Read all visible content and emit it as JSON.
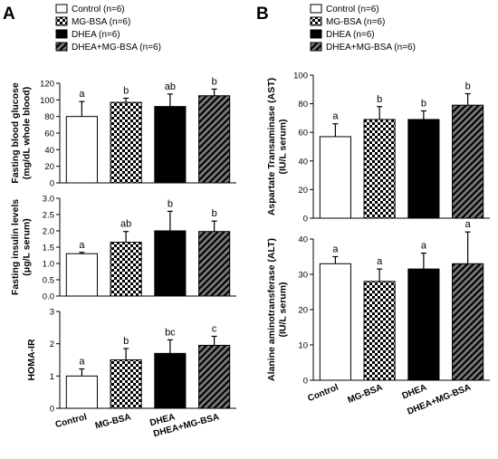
{
  "figure": {
    "panels": [
      {
        "letter": "A"
      },
      {
        "letter": "B"
      }
    ]
  },
  "legend": {
    "items": [
      {
        "label": "Control (n=6)",
        "pattern": "white"
      },
      {
        "label": "MG-BSA (n=6)",
        "pattern": "checker"
      },
      {
        "label": "DHEA (n=6)",
        "pattern": "black"
      },
      {
        "label": "DHEA+MG-BSA (n=6)",
        "pattern": "diag"
      }
    ]
  },
  "colors": {
    "bar_fill_black": "#000000",
    "diag_bg": "#7a7a7a",
    "axis": "#000000"
  },
  "chart_data": [
    {
      "type": "bar",
      "panel": "A",
      "ylabel": [
        "Fasting blood glucose",
        "(mg/dL whole blood)"
      ],
      "ylim": [
        0,
        120
      ],
      "yticks": [
        0,
        20,
        40,
        60,
        80,
        100,
        120
      ],
      "tick_labels": [
        "0",
        "20",
        "40",
        "60",
        "80",
        "100",
        "120"
      ],
      "categories": [
        "Control",
        "MG-BSA",
        "DHEA",
        "DHEA+MG-BSA"
      ],
      "values": [
        80,
        97,
        92,
        105
      ],
      "errors": [
        18,
        5,
        15,
        8
      ],
      "significance": [
        "a",
        "b",
        "ab",
        "b"
      ]
    },
    {
      "type": "bar",
      "panel": "A",
      "ylabel": [
        "Fasting insulin levels",
        "(μg/L serum)"
      ],
      "ylim": [
        0,
        3.0
      ],
      "yticks": [
        0,
        0.5,
        1.0,
        1.5,
        2.0,
        2.5,
        3.0
      ],
      "tick_labels": [
        "0.0",
        "0.5",
        "1.0",
        "1.5",
        "2.0",
        "2.5",
        "3.0"
      ],
      "categories": [
        "Control",
        "MG-BSA",
        "DHEA",
        "DHEA+MG-BSA"
      ],
      "values": [
        1.3,
        1.65,
        2.0,
        1.98
      ],
      "errors": [
        0.04,
        0.33,
        0.6,
        0.32
      ],
      "significance": [
        "a",
        "ab",
        "b",
        "b"
      ]
    },
    {
      "type": "bar",
      "panel": "A",
      "ylabel": [
        "HOMA-IR"
      ],
      "ylim": [
        0,
        3
      ],
      "yticks": [
        0,
        1,
        2,
        3
      ],
      "tick_labels": [
        "0",
        "1",
        "2",
        "3"
      ],
      "categories": [
        "Control",
        "MG-BSA",
        "DHEA",
        "DHEA+MG-BSA"
      ],
      "values": [
        1.0,
        1.5,
        1.7,
        1.95
      ],
      "errors": [
        0.22,
        0.35,
        0.42,
        0.28
      ],
      "significance": [
        "a",
        "b",
        "bc",
        "c"
      ]
    },
    {
      "type": "bar",
      "panel": "B",
      "ylabel": [
        "Aspartate Transaminase (AST)",
        "(IU/L serum)"
      ],
      "ylim": [
        0,
        100
      ],
      "yticks": [
        0,
        20,
        40,
        60,
        80,
        100
      ],
      "tick_labels": [
        "0",
        "20",
        "40",
        "60",
        "80",
        "100"
      ],
      "categories": [
        "Control",
        "MG-BSA",
        "DHEA",
        "DHEA+MG-BSA"
      ],
      "values": [
        57,
        69,
        69,
        79
      ],
      "errors": [
        9,
        9,
        6,
        8
      ],
      "significance": [
        "a",
        "b",
        "b",
        "b"
      ]
    },
    {
      "type": "bar",
      "panel": "B",
      "ylabel": [
        "Alanine aminotransferase (ALT)",
        "(IU/L serum)"
      ],
      "ylim": [
        0,
        40
      ],
      "yticks": [
        0,
        10,
        20,
        30,
        40
      ],
      "tick_labels": [
        "0",
        "10",
        "20",
        "30",
        "40"
      ],
      "categories": [
        "Control",
        "MG-BSA",
        "DHEA",
        "DHEA+MG-BSA"
      ],
      "values": [
        33,
        28,
        31.5,
        33
      ],
      "errors": [
        2,
        3.5,
        4.5,
        9
      ],
      "significance": [
        "a",
        "a",
        "a",
        "a"
      ]
    }
  ]
}
